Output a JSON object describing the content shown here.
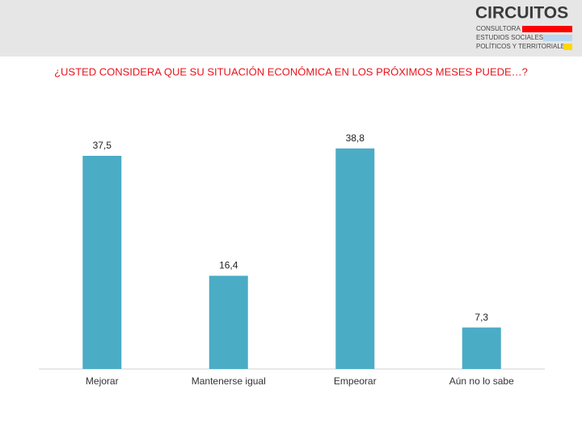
{
  "header": {
    "logo": "CIRCUITOS",
    "tagline": [
      "CONSULTORA DE",
      "ESTUDIOS SOCIALES,",
      "POLÍTICOS Y TERRITORIALES"
    ]
  },
  "chart_data": {
    "type": "bar",
    "title": "¿USTED CONSIDERA QUE SU SITUACIÓN ECONÓMICA EN LOS PRÓXIMOS MESES PUEDE…?",
    "categories": [
      "Mejorar",
      "Mantenerse igual",
      "Empeorar",
      "Aún no lo sabe"
    ],
    "values": [
      37.5,
      16.4,
      38.8,
      7.3
    ],
    "value_labels": [
      "37,5",
      "16,4",
      "38,8",
      "7,3"
    ],
    "color": "#4bacc6"
  }
}
